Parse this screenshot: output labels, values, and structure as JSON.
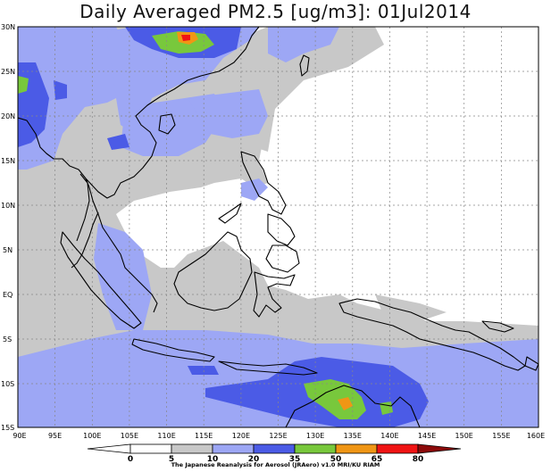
{
  "title": "Daily Averaged PM2.5 [ug/m3]: 01Jul2014",
  "lat_labels": [
    "30N",
    "25N",
    "20N",
    "15N",
    "10N",
    "5N",
    "EQ",
    "5S",
    "10S",
    "15S"
  ],
  "lon_labels": [
    "90E",
    "95E",
    "100E",
    "105E",
    "110E",
    "115E",
    "120E",
    "125E",
    "130E",
    "135E",
    "140E",
    "145E",
    "150E",
    "155E",
    "160E"
  ],
  "colorbar": {
    "levels": [
      "0",
      "5",
      "10",
      "20",
      "35",
      "50",
      "65",
      "80"
    ],
    "colors": [
      "#ffffff",
      "#ffffff",
      "#c8c8c8",
      "#9da7f5",
      "#4b5be6",
      "#78c83c",
      "#f09615",
      "#f01414",
      "#8c0a0a"
    ]
  },
  "credit": "The Japanese Reanalysis for Aerosol (JRAero) v1.0 MRI/KU RIAM"
}
